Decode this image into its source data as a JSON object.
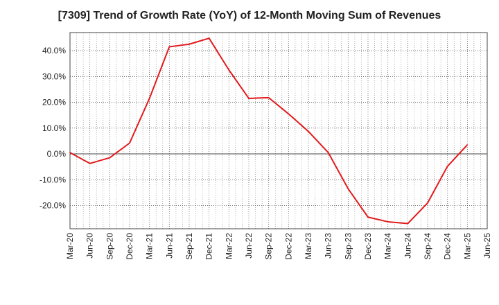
{
  "chart_data": {
    "type": "line",
    "title": "[7309]  Trend of Growth Rate (YoY) of 12-Month Moving Sum of Revenues",
    "xlabel": "",
    "ylabel": "",
    "x_tick_labels": [
      "Mar-20",
      "Jun-20",
      "Sep-20",
      "Dec-20",
      "Mar-21",
      "Jun-21",
      "Sep-21",
      "Dec-21",
      "Mar-22",
      "Jun-22",
      "Sep-22",
      "Dec-22",
      "Mar-23",
      "Jun-23",
      "Sep-23",
      "Dec-23",
      "Mar-24",
      "Jun-24",
      "Sep-24",
      "Dec-24",
      "Mar-25",
      "Jun-25"
    ],
    "y_ticks": [
      -20,
      -10,
      0,
      10,
      20,
      30,
      40
    ],
    "y_tick_labels": [
      "-20.0%",
      "-10.0%",
      "0.0%",
      "10.0%",
      "20.0%",
      "30.0%",
      "40.0%"
    ],
    "ylim": [
      -29,
      47
    ],
    "grid": true,
    "series": [
      {
        "color": "#e31a1c",
        "x": [
          "Mar-20",
          "Jun-20",
          "Sep-20",
          "Dec-20",
          "Mar-21",
          "Jun-21",
          "Sep-21",
          "Dec-21",
          "Mar-22",
          "Jun-22",
          "Sep-22",
          "Dec-22",
          "Mar-23",
          "Jun-23",
          "Sep-23",
          "Dec-23",
          "Mar-24",
          "Jun-24",
          "Sep-24",
          "Dec-24",
          "Mar-25"
        ],
        "values": [
          0.5,
          -3.7,
          -1.5,
          4.2,
          21.5,
          41.5,
          42.5,
          44.8,
          32.5,
          21.5,
          21.8,
          15.5,
          8.7,
          0.5,
          -13.5,
          -24.5,
          -26.3,
          -27.0,
          -19.0,
          -4.8,
          3.5
        ]
      }
    ]
  }
}
